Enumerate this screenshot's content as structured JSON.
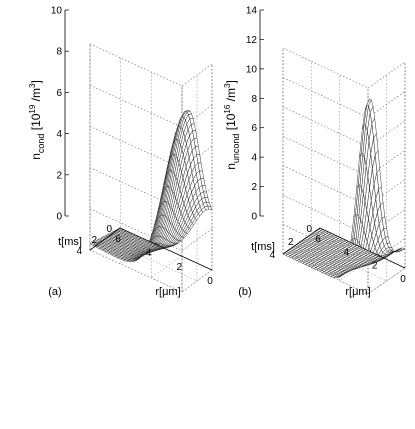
{
  "chart_data": [
    {
      "type": "surface",
      "panel_label": "(a)",
      "zlabel_main": "n",
      "zlabel_sub": "cond",
      "zlabel_unit_pre": " [10",
      "zlabel_unit_exp": "19",
      "zlabel_unit_mid": " /m",
      "zlabel_unit_exp2": "3",
      "zlabel_unit_post": "]",
      "xlabel": "r[μm]",
      "ylabel": "t[ms]",
      "z_ticks": [
        "0",
        "2",
        "4",
        "6",
        "8",
        "10"
      ],
      "x_ticks": [
        "6",
        "4",
        "2",
        "0"
      ],
      "y_ticks": [
        "4",
        "2",
        "0"
      ],
      "zlim": [
        0,
        10
      ],
      "xlim": [
        0,
        6
      ],
      "ylim": [
        0,
        4
      ],
      "peak_z": 8.6,
      "peak_r": 0,
      "grid": true
    },
    {
      "type": "surface",
      "panel_label": "(b)",
      "zlabel_main": "n",
      "zlabel_sub": "uncond",
      "zlabel_unit_pre": " [10",
      "zlabel_unit_exp": "16",
      "zlabel_unit_mid": " /m",
      "zlabel_unit_exp2": "3",
      "zlabel_unit_post": "]",
      "xlabel": "r[μm]",
      "ylabel": "t[ms]",
      "z_ticks": [
        "0",
        "2",
        "4",
        "6",
        "8",
        "10",
        "12",
        "14"
      ],
      "x_ticks": [
        "6",
        "4",
        "2",
        "0"
      ],
      "y_ticks": [
        "4",
        "2",
        "0"
      ],
      "zlim": [
        0,
        14
      ],
      "xlim": [
        0,
        6
      ],
      "ylim": [
        0,
        4
      ],
      "peak_z": 13.2,
      "peak_r": 0,
      "grid": true
    }
  ]
}
